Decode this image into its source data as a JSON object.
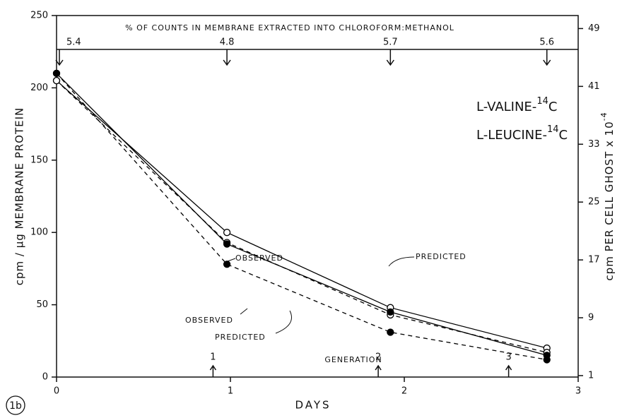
{
  "chart_data": {
    "type": "line",
    "panel_label": "1b",
    "top_title": "% OF COUNTS IN MEMBRANE EXTRACTED INTO CHLOROFORM:METHANOL",
    "top_markers": {
      "x": [
        0,
        0.98,
        1.92,
        2.82
      ],
      "labels": [
        "5.4",
        "4.8",
        "5.7",
        "5.6"
      ]
    },
    "generation_label": "GENERATION",
    "generation_markers": {
      "x": [
        0.9,
        1.85,
        2.6
      ],
      "labels": [
        "1",
        "2",
        "3"
      ]
    },
    "xlabel": "DAYS",
    "ylabel": "cpm / µg MEMBRANE PROTEIN",
    "y2label": {
      "text": "cpm PER CELL GHOST x 10",
      "sup": "-4"
    },
    "compounds": [
      {
        "text": "L-VALINE-",
        "sup": "14",
        "tail": "C"
      },
      {
        "text": "L-LEUCINE-",
        "sup": "14",
        "tail": "C"
      }
    ],
    "annotations": [
      "OBSERVED",
      "PREDICTED",
      "OBSERVED",
      "PREDICTED"
    ],
    "x": [
      0,
      0.98,
      1.92,
      2.82
    ],
    "series": [
      {
        "color": "#000",
        "dashed": false,
        "marker_filled": false,
        "values": [
          205,
          100,
          48,
          20
        ]
      },
      {
        "color": "#000",
        "dashed": true,
        "marker_filled": false,
        "values": [
          205,
          93,
          43,
          17
        ]
      },
      {
        "color": "#000",
        "dashed": false,
        "marker_filled": true,
        "values": [
          210,
          92,
          45,
          15
        ]
      },
      {
        "color": "#000",
        "dashed": true,
        "marker_filled": true,
        "values": [
          210,
          78,
          31,
          12
        ]
      }
    ],
    "xlim": [
      0,
      3
    ],
    "xticks": [
      0,
      1,
      2,
      3
    ],
    "ylim": [
      0,
      250
    ],
    "yticks": [
      0,
      50,
      100,
      150,
      200,
      250
    ],
    "y2lim": [
      0.8,
      50.8
    ],
    "y2ticks": [
      1,
      9,
      17,
      25,
      33,
      41,
      49
    ]
  }
}
